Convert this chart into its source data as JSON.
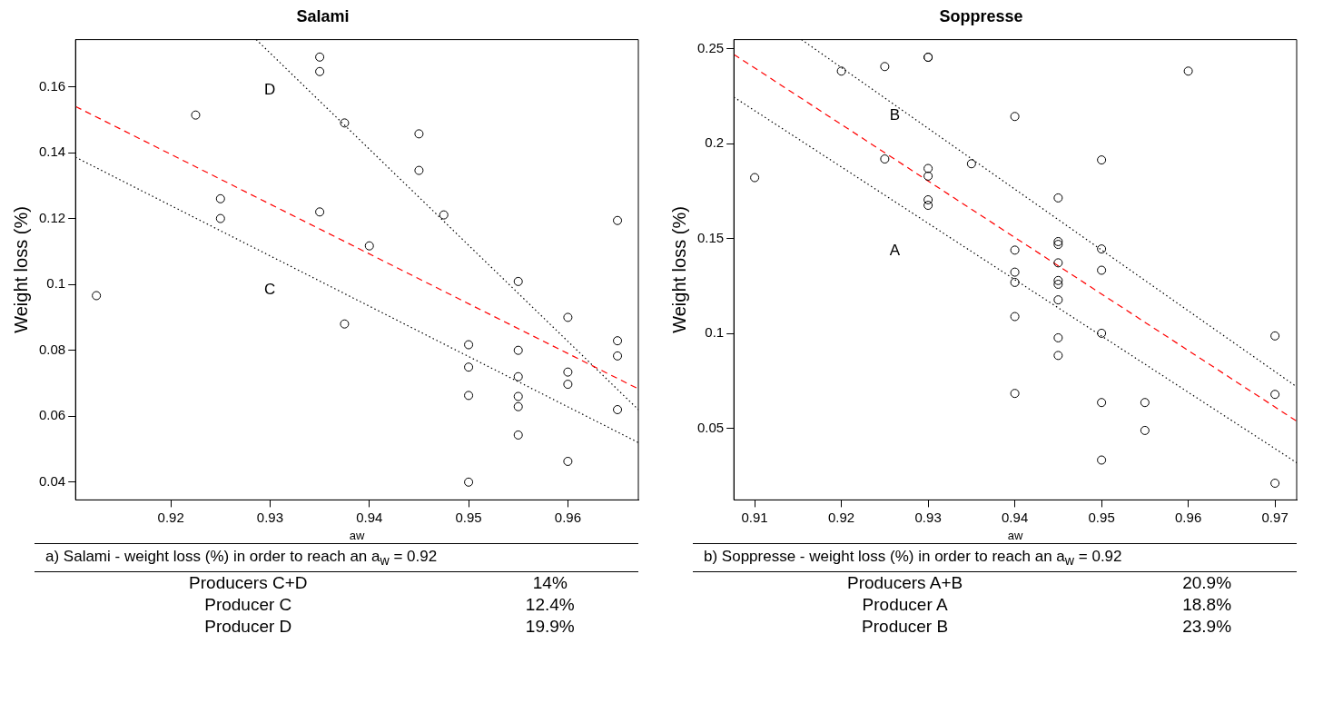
{
  "chart_data": [
    {
      "type": "scatter",
      "title": "Salami",
      "xlabel": "aw",
      "ylabel": "Weight loss (%)",
      "xlim": [
        0.9104,
        0.9671
      ],
      "ylim": [
        0.0346,
        0.1743
      ],
      "xticks": [
        0.92,
        0.93,
        0.94,
        0.95,
        0.96
      ],
      "yticks": [
        0.04,
        0.06,
        0.08,
        0.1,
        0.12,
        0.14,
        0.16
      ],
      "grid": false,
      "legend": false,
      "series": [
        {
          "type": "scatter",
          "marker": "circle",
          "color": "#000000",
          "x": [
            0.9125,
            0.9225,
            0.925,
            0.925,
            0.935,
            0.935,
            0.935,
            0.9375,
            0.9375,
            0.94,
            0.945,
            0.945,
            0.9475,
            0.955,
            0.95,
            0.95,
            0.95,
            0.95,
            0.955,
            0.955,
            0.955,
            0.955,
            0.955,
            0.96,
            0.96,
            0.96,
            0.96,
            0.965,
            0.965,
            0.965,
            0.965
          ],
          "values": [
            0.0966,
            0.1514,
            0.126,
            0.12,
            0.169,
            0.1646,
            0.122,
            0.149,
            0.088,
            0.1117,
            0.1457,
            0.1346,
            0.1211,
            0.1009,
            0.0817,
            0.0749,
            0.0663,
            0.04,
            0.08,
            0.072,
            0.066,
            0.0629,
            0.0543,
            0.09,
            0.0734,
            0.0697,
            0.0463,
            0.1194,
            0.0829,
            0.0783,
            0.062
          ]
        },
        {
          "type": "line",
          "marker": "none",
          "line_style": "dashed",
          "color": "#ff0000",
          "x": [
            0.9104,
            0.9671
          ],
          "values": [
            0.154,
            0.0683
          ]
        },
        {
          "type": "line",
          "marker": "none",
          "line_style": "dotted",
          "color": "#000000",
          "x": [
            0.9104,
            0.9671
          ],
          "values": [
            0.1386,
            0.052
          ]
        },
        {
          "type": "line",
          "marker": "none",
          "line_style": "dotted",
          "color": "#000000",
          "x": [
            0.9286,
            0.9671
          ],
          "values": [
            0.1743,
            0.062
          ]
        }
      ],
      "annotations": [
        "D",
        "C",
        "a) Salami - weight loss (%) in order to reach an a$_{w}$ = 0.92",
        "Producers C+D",
        "14%",
        "Producer C",
        "12.4%",
        "Producer D",
        "19.9%"
      ]
    },
    {
      "type": "scatter",
      "title": "Soppresse",
      "xlabel": "aw",
      "ylabel": "Weight loss (%)",
      "xlim": [
        0.9076,
        0.9725
      ],
      "ylim": [
        0.0124,
        0.2549
      ],
      "xticks": [
        0.91,
        0.92,
        0.93,
        0.94,
        0.95,
        0.96,
        0.97
      ],
      "yticks": [
        0.05,
        0.1,
        0.15,
        0.2,
        0.25
      ],
      "grid": false,
      "legend": false,
      "series": [
        {
          "type": "scatter",
          "marker": "circle",
          "color": "#000000",
          "x": [
            0.91,
            0.92,
            0.925,
            0.93,
            0.93,
            0.925,
            0.93,
            0.93,
            0.93,
            0.93,
            0.935,
            0.94,
            0.95,
            0.945,
            0.94,
            0.94,
            0.94,
            0.94,
            0.94,
            0.945,
            0.945,
            0.945,
            0.945,
            0.945,
            0.945,
            0.945,
            0.945,
            0.95,
            0.95,
            0.95,
            0.95,
            0.95,
            0.955,
            0.955,
            0.96,
            0.97,
            0.97,
            0.97
          ],
          "values": [
            0.1822,
            0.2383,
            0.2407,
            0.2456,
            0.2456,
            0.192,
            0.187,
            0.183,
            0.1705,
            0.1676,
            0.1895,
            0.2144,
            0.1915,
            0.1715,
            0.144,
            0.1324,
            0.127,
            0.109,
            0.0685,
            0.1485,
            0.147,
            0.1373,
            0.128,
            0.126,
            0.1178,
            0.0978,
            0.0885,
            0.1446,
            0.1334,
            0.1002,
            0.0637,
            0.0334,
            0.0637,
            0.049,
            0.2383,
            0.0988,
            0.068,
            0.0212
          ]
        },
        {
          "type": "line",
          "marker": "none",
          "line_style": "dashed",
          "color": "#ff0000",
          "x": [
            0.9076,
            0.9725
          ],
          "values": [
            0.2471,
            0.0539
          ]
        },
        {
          "type": "line",
          "marker": "none",
          "line_style": "dotted",
          "color": "#000000",
          "x": [
            0.9076,
            0.9725
          ],
          "values": [
            0.2246,
            0.032
          ]
        },
        {
          "type": "line",
          "marker": "none",
          "line_style": "dotted",
          "color": "#000000",
          "x": [
            0.9154,
            0.9725
          ],
          "values": [
            0.2549,
            0.072
          ]
        }
      ],
      "annotations": [
        "B",
        "A",
        "b) Soppresse - weight loss (%) in order to reach an a$_{w}$ = 0.92",
        "Producers A+B",
        "20.9%",
        "Producer A",
        "18.8%",
        "Producer B",
        "23.9%"
      ]
    }
  ]
}
